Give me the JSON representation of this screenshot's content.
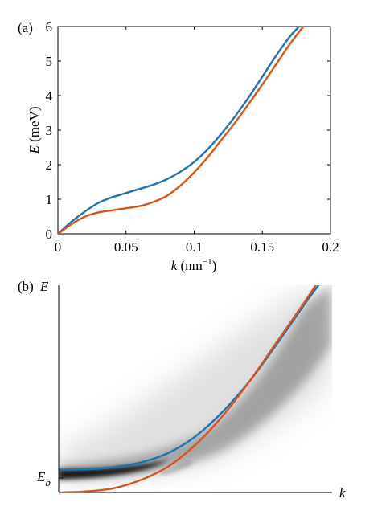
{
  "chart_data": [
    {
      "panel": "(a)",
      "type": "line",
      "xlabel": {
        "var": "k",
        "unit": " (nm",
        "exp": "−1",
        "close": ")"
      },
      "ylabel": {
        "var": "E",
        "unit": " (meV)"
      },
      "xlim": [
        0,
        0.2
      ],
      "ylim": [
        0,
        6
      ],
      "xticks": [
        0,
        0.05,
        0.1,
        0.15,
        0.2
      ],
      "xtick_labels": [
        "0",
        "0.05",
        "0.1",
        "0.15",
        "0.2"
      ],
      "yticks": [
        0,
        1,
        2,
        3,
        4,
        5,
        6
      ],
      "ytick_labels": [
        "0",
        "1",
        "2",
        "3",
        "4",
        "5",
        "6"
      ],
      "grid": false,
      "series": [
        {
          "color": "#1a74b8",
          "x": [
            0,
            0.01,
            0.02,
            0.03,
            0.04,
            0.05,
            0.06,
            0.07,
            0.08,
            0.09,
            0.1,
            0.11,
            0.12,
            0.13,
            0.14,
            0.15,
            0.16,
            0.17,
            0.177
          ],
          "y": [
            0,
            0.35,
            0.65,
            0.9,
            1.06,
            1.18,
            1.3,
            1.42,
            1.58,
            1.8,
            2.08,
            2.45,
            2.9,
            3.4,
            3.95,
            4.55,
            5.15,
            5.7,
            6.0
          ]
        },
        {
          "color": "#d9541a",
          "x": [
            0,
            0.01,
            0.02,
            0.03,
            0.04,
            0.05,
            0.06,
            0.07,
            0.08,
            0.09,
            0.1,
            0.11,
            0.12,
            0.13,
            0.14,
            0.15,
            0.16,
            0.17,
            0.18
          ],
          "y": [
            0,
            0.28,
            0.5,
            0.62,
            0.68,
            0.74,
            0.8,
            0.92,
            1.1,
            1.4,
            1.78,
            2.22,
            2.72,
            3.22,
            3.76,
            4.32,
            4.9,
            5.48,
            6.0
          ]
        }
      ]
    },
    {
      "panel": "(b)",
      "type": "line",
      "xlabel": "k",
      "ylabel": "E",
      "ytick_label": {
        "var": "E",
        "sub": "b"
      },
      "schematic": true,
      "xlim": [
        0,
        1
      ],
      "ylim": [
        0,
        1
      ],
      "background": "grayscale intensity map (spectral density) around the bands",
      "series": [
        {
          "color": "#1a74b8",
          "x": [
            0,
            0.1,
            0.2,
            0.3,
            0.4,
            0.5,
            0.6,
            0.7,
            0.8,
            0.9,
            0.95
          ],
          "y": [
            0.11,
            0.112,
            0.122,
            0.145,
            0.19,
            0.27,
            0.39,
            0.54,
            0.72,
            0.91,
            1.0
          ]
        },
        {
          "color": "#d9541a",
          "x": [
            0,
            0.1,
            0.2,
            0.3,
            0.4,
            0.5,
            0.6,
            0.7,
            0.8,
            0.9,
            0.94
          ],
          "y": [
            0.0,
            0.005,
            0.02,
            0.06,
            0.125,
            0.23,
            0.37,
            0.54,
            0.73,
            0.92,
            1.0
          ]
        }
      ]
    }
  ]
}
